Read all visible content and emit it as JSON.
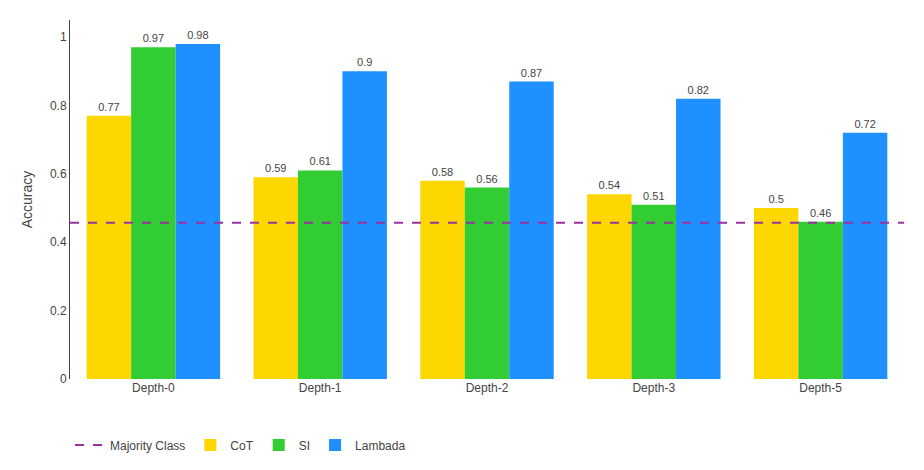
{
  "chart_data": {
    "type": "bar",
    "y_label": "Accuracy",
    "categories": [
      "Depth-0",
      "Depth-1",
      "Depth-2",
      "Depth-3",
      "Depth-5"
    ],
    "series": [
      {
        "name": "CoT",
        "color": "#FFD700",
        "values": [
          0.77,
          0.59,
          0.58,
          0.54,
          0.5
        ]
      },
      {
        "name": "SI",
        "color": "#32CD32",
        "values": [
          0.97,
          0.61,
          0.56,
          0.51,
          0.46
        ]
      },
      {
        "name": "Lambada",
        "color": "#1E90FF",
        "values": [
          0.98,
          0.9,
          0.87,
          0.82,
          0.72
        ]
      }
    ],
    "reference_line": {
      "name": "Majority Class",
      "value": 0.457,
      "color": "#9B30A0",
      "line_style": "dashed"
    },
    "ylim": [
      0.0,
      1.05
    ],
    "yticks": [
      0.0,
      0.2,
      0.4,
      0.6,
      0.8,
      1.0
    ],
    "grid": false,
    "legend": "lower left",
    "data_labels": true
  }
}
